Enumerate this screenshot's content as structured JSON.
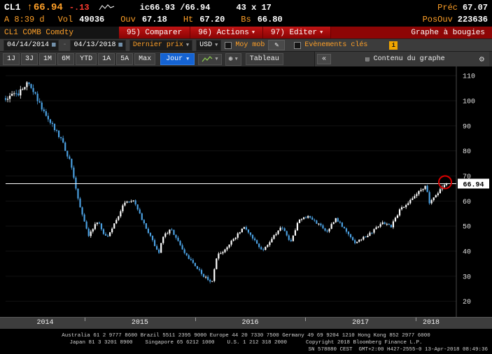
{
  "quote": {
    "ticker": "CL1",
    "direction_arrow": "↑",
    "last": "66.94",
    "change": "-.13",
    "bid_ask": "ic66.93 /66.94",
    "lot_sizes": "43 x 17",
    "prev_label": "Préc",
    "prev": "67.07",
    "session": "A 8:39 d",
    "vol_label": "Vol",
    "vol": "49036",
    "open_label": "Ouv",
    "open": "67.18",
    "high_label": "Ht",
    "high": "67.20",
    "low_label": "Bs",
    "low": "66.80",
    "open_interest_label": "PosOuv",
    "open_interest": "223636"
  },
  "menubar": {
    "security": "CL1 COMB Comdty",
    "compare": "95) Comparer",
    "actions": "96) Actions",
    "edit": "97) Editer",
    "view_title": "Graphe à bougies"
  },
  "toolbar": {
    "date_from": "04/14/2014",
    "date_to": "04/13/2018",
    "price_source": "Dernier prix",
    "currency": "USD",
    "mov_avg": "Moy mob",
    "key_events": "Evènements clés",
    "info": "i"
  },
  "ranges": [
    "1J",
    "3J",
    "1M",
    "6M",
    "YTD",
    "1A",
    "5A",
    "Max"
  ],
  "interval": {
    "label": "Jour"
  },
  "table_button": "Tableau",
  "panel": {
    "collapse": "«",
    "title": "Contenu du graphe"
  },
  "chart_data": {
    "type": "candlestick",
    "symbol": "CL1 COMB Comdty",
    "title": "Graphe à bougies",
    "x_start": "04/14/2014",
    "x_end": "04/13/2018",
    "x_year_labels": [
      "2014",
      "2015",
      "2016",
      "2017",
      "2018"
    ],
    "y_ticks": [
      20,
      30,
      40,
      50,
      60,
      70,
      80,
      90,
      100,
      110
    ],
    "ylim": [
      16,
      112
    ],
    "last_price": 66.94,
    "last_price_line": true,
    "up_color": "#ffffff",
    "down_color": "#4a9fe0",
    "annotation": {
      "type": "circle",
      "color": "#dd0000",
      "at_price": 66.94,
      "at_t": 1.0
    },
    "keypoints": [
      [
        0,
        101
      ],
      [
        0.03,
        103
      ],
      [
        0.052,
        107
      ],
      [
        0.083,
        97
      ],
      [
        0.125,
        85
      ],
      [
        0.146,
        76
      ],
      [
        0.167,
        59
      ],
      [
        0.188,
        46
      ],
      [
        0.208,
        52
      ],
      [
        0.229,
        45
      ],
      [
        0.25,
        52
      ],
      [
        0.271,
        60
      ],
      [
        0.292,
        60
      ],
      [
        0.313,
        51
      ],
      [
        0.348,
        39
      ],
      [
        0.354,
        45
      ],
      [
        0.375,
        49
      ],
      [
        0.396,
        42
      ],
      [
        0.417,
        37
      ],
      [
        0.45,
        30
      ],
      [
        0.467,
        27
      ],
      [
        0.479,
        38
      ],
      [
        0.5,
        41
      ],
      [
        0.542,
        50
      ],
      [
        0.583,
        40
      ],
      [
        0.625,
        50
      ],
      [
        0.646,
        44
      ],
      [
        0.667,
        53
      ],
      [
        0.688,
        54
      ],
      [
        0.729,
        48
      ],
      [
        0.75,
        53
      ],
      [
        0.792,
        43
      ],
      [
        0.833,
        48
      ],
      [
        0.854,
        51
      ],
      [
        0.875,
        50
      ],
      [
        0.896,
        57
      ],
      [
        0.917,
        60
      ],
      [
        0.938,
        64
      ],
      [
        0.954,
        66
      ],
      [
        0.962,
        59
      ],
      [
        0.979,
        63
      ],
      [
        1,
        66.94
      ]
    ]
  },
  "footer": {
    "line1": "Australia 61 2 9777 8600 Brazil 5511 2395 9000 Europe 44 20 7330 7500 Germany 49 69 9204 1210 Hong Kong 852 2977 6000",
    "line2": "Japan 81 3 3201 8900    Singapore 65 6212 1000    U.S. 1 212 318 2000      Copyright 2018 Bloomberg Finance L.P.",
    "line3": "SN 578880 CEST  GMT+2:00 H427-2555-0 13-Apr-2018 08:49:36"
  }
}
